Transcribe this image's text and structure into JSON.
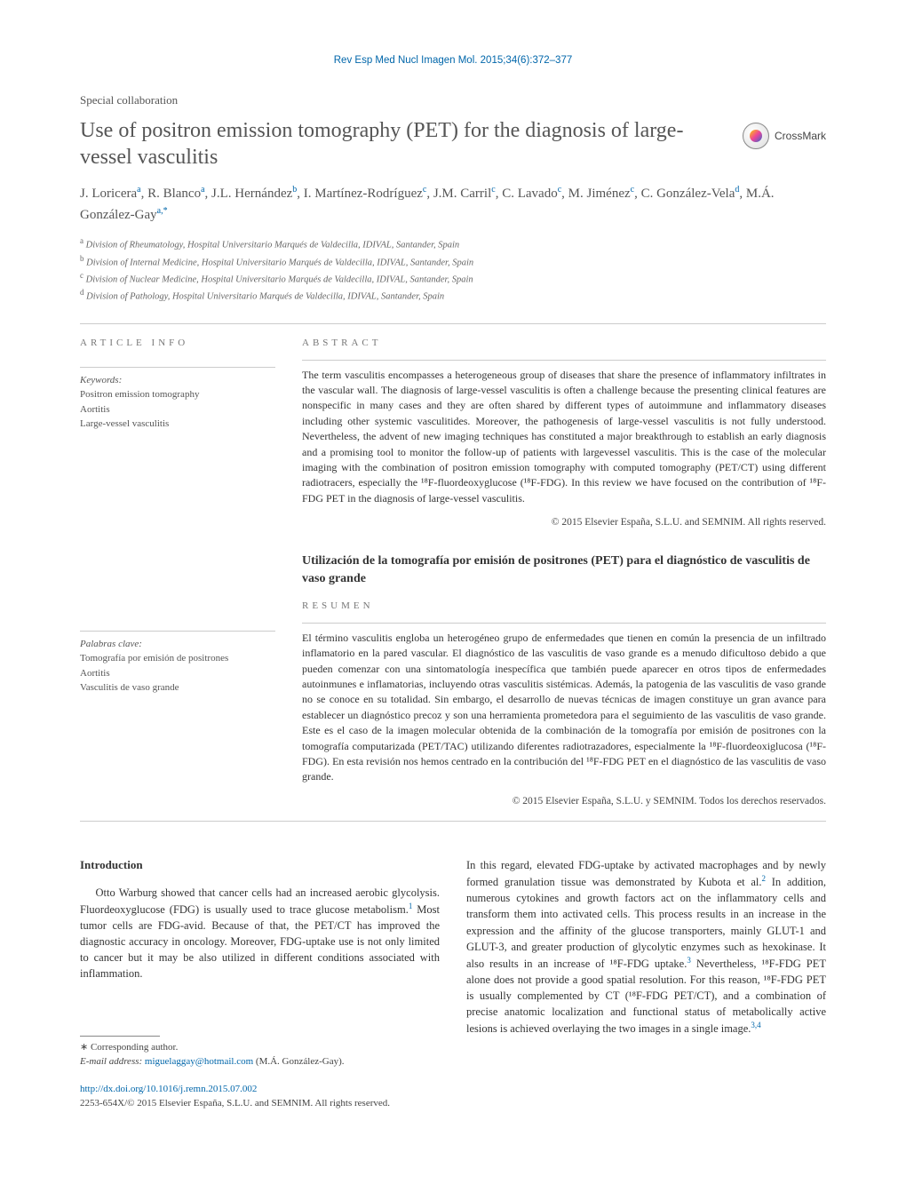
{
  "journal_ref": "Rev Esp Med Nucl Imagen Mol. 2015;34(6):372–377",
  "article_type": "Special collaboration",
  "title": "Use of positron emission tomography (PET) for the diagnosis of large-vessel vasculitis",
  "crossmark_label": "CrossMark",
  "authors_html": "J. Loricera<sup>a</sup>,  R. Blanco<sup>a</sup>,  J.L. Hernández<sup>b</sup>,  I. Martínez-Rodríguez<sup>c</sup>,  J.M. Carril<sup>c</sup>,  C. Lavado<sup>c</sup>,  M. Jiménez<sup>c</sup>,  C. González-Vela<sup>d</sup>,  M.Á. González-Gay<sup>a,*</sup>",
  "affiliations": [
    {
      "sup": "a",
      "text": "Division of Rheumatology, Hospital Universitario Marqués de Valdecilla, IDIVAL, Santander, Spain"
    },
    {
      "sup": "b",
      "text": "Division of Internal Medicine, Hospital Universitario Marqués de Valdecilla, IDIVAL, Santander, Spain"
    },
    {
      "sup": "c",
      "text": "Division of Nuclear Medicine, Hospital Universitario Marqués de Valdecilla, IDIVAL, Santander, Spain"
    },
    {
      "sup": "d",
      "text": "Division of Pathology, Hospital Universitario Marqués de Valdecilla, IDIVAL, Santander, Spain"
    }
  ],
  "section_labels": {
    "article_info": "article info",
    "abstract": "abstract",
    "resumen": "resumen"
  },
  "keywords_en": {
    "head": "Keywords:",
    "items": [
      "Positron emission tomography",
      "Aortitis",
      "Large-vessel vasculitis"
    ]
  },
  "keywords_es": {
    "head": "Palabras clave:",
    "items": [
      "Tomografía por emisión de positrones",
      "Aortitis",
      "Vasculitis de vaso grande"
    ]
  },
  "abstract_en": "The term vasculitis encompasses a heterogeneous group of diseases that share the presence of inflammatory infiltrates in the vascular wall. The diagnosis of large-vessel vasculitis is often a challenge because the presenting clinical features are nonspecific in many cases and they are often shared by different types of autoimmune and inflammatory diseases including other systemic vasculitides. Moreover, the pathogenesis of large-vessel vasculitis is not fully understood. Nevertheless, the advent of new imaging techniques has constituted a major breakthrough to establish an early diagnosis and a promising tool to monitor the follow-up of patients with largevessel vasculitis. This is the case of the molecular imaging with the combination of positron emission tomography with computed tomography (PET/CT) using different radiotracers, especially the ¹⁸F-fluordeoxyglucose (¹⁸F-FDG). In this review we have focused on the contribution of ¹⁸F-FDG PET in the diagnosis of large-vessel vasculitis.",
  "copyright_en": "© 2015 Elsevier España, S.L.U. and SEMNIM. All rights reserved.",
  "title_es": "Utilización de la tomografía por emisión de positrones (PET) para el diagnóstico de vasculitis de vaso grande",
  "abstract_es": "El término vasculitis engloba un heterogéneo grupo de enfermedades que tienen en común la presencia de un infiltrado inflamatorio en la pared vascular. El diagnóstico de las vasculitis de vaso grande es a menudo dificultoso debido a que pueden comenzar con una sintomatología inespecífica que también puede aparecer en otros tipos de enfermedades autoinmunes e inflamatorias, incluyendo otras vasculitis sistémicas. Además, la patogenia de las vasculitis de vaso grande no se conoce en su totalidad. Sin embargo, el desarrollo de nuevas técnicas de imagen constituye un gran avance para establecer un diagnóstico precoz y son una herramienta prometedora para el seguimiento de las vasculitis de vaso grande. Este es el caso de la imagen molecular obtenida de la combinación de la tomografía por emisión de positrones con la tomografía computarizada (PET/TAC) utilizando diferentes radiotrazadores, especialmente la ¹⁸F-fluordeoxiglucosa (¹⁸F-FDG). En esta revisión nos hemos centrado en la contribución del ¹⁸F-FDG PET en el diagnóstico de las vasculitis de vaso grande.",
  "copyright_es": "© 2015 Elsevier España, S.L.U. y SEMNIM. Todos los derechos reservados.",
  "intro_heading": "Introduction",
  "intro_p1_pre": "Otto Warburg showed that cancer cells had an increased aerobic glycolysis. Fluordeoxyglucose (FDG) is usually used to trace glucose metabolism.",
  "intro_p1_post": " Most tumor cells are FDG-avid. Because of that, the PET/CT has improved the diagnostic accuracy in oncology. Moreover, FDG-uptake use is not only limited to cancer but it may be also utilized in different conditions associated with inflammation.",
  "intro_p2_a": "In this regard, elevated FDG-uptake by activated macrophages and by newly formed granulation tissue was demonstrated by Kubota et al.",
  "intro_p2_b": " In addition, numerous cytokines and growth factors act on the inflammatory cells and transform them into activated cells. This process results in an increase in the expression and the affinity of the glucose transporters, mainly GLUT-1 and GLUT-3, and greater production of glycolytic enzymes such as hexokinase. It also results in an increase of ¹⁸F-FDG uptake.",
  "intro_p2_c": " Nevertheless, ¹⁸F-FDG PET alone does not provide a good spatial resolution. For this reason, ¹⁸F-FDG PET is usually complemented by CT (¹⁸F-FDG PET/CT), and a combination of precise anatomic localization and functional status of metabolically active lesions is achieved overlaying the two images in a single image.",
  "refs": {
    "r1": "1",
    "r2": "2",
    "r3": "3",
    "r34": "3,4"
  },
  "footer": {
    "corresponding": "∗ Corresponding author.",
    "email_label": "E-mail address:",
    "email": "miguelaggay@hotmail.com",
    "email_name": "(M.Á. González-Gay).",
    "doi": "http://dx.doi.org/10.1016/j.remn.2015.07.002",
    "issn_line": "2253-654X/© 2015 Elsevier España, S.L.U. and SEMNIM. All rights reserved."
  },
  "colors": {
    "link": "#0066aa",
    "text": "#333333",
    "muted": "#666666",
    "rule": "#cccccc"
  }
}
